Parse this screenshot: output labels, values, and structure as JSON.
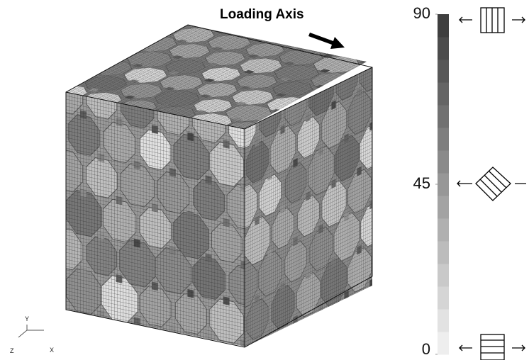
{
  "title": "Loading Axis",
  "triad": {
    "y": "Y",
    "z": "Z",
    "x": "X"
  },
  "colorbar": {
    "range": [
      0,
      90
    ],
    "ticks": [
      90,
      45,
      0
    ]
  }
}
